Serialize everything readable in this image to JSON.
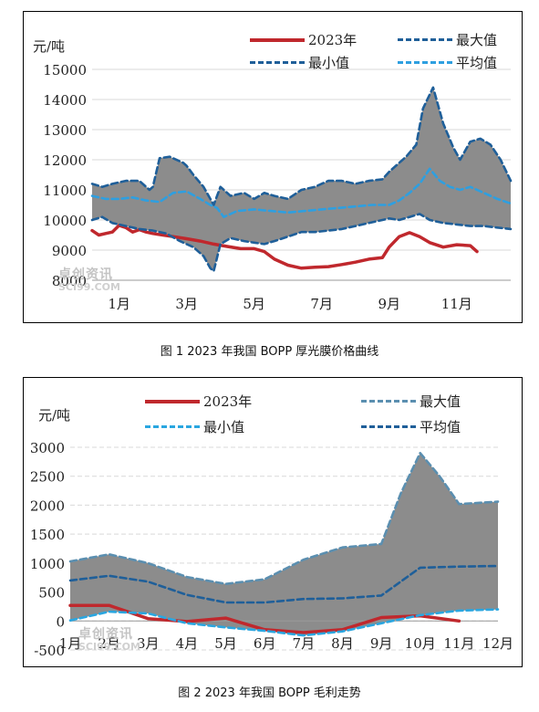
{
  "figures": [
    {
      "caption": "图 1  2023 年我国 BOPP 厚光膜价格曲线",
      "unit": "元/吨",
      "watermark_cn": "卓创资讯",
      "watermark_en": "SCI99.COM"
    },
    {
      "caption": "图 2  2023 年我国 BOPP 毛利走势",
      "unit": "元/吨",
      "watermark_cn": "卓创资讯",
      "watermark_en": "SCI99.COM"
    }
  ],
  "chart_data": [
    {
      "type": "area",
      "title": "",
      "xlabel": "",
      "ylabel": "元/吨",
      "ylim": [
        8000,
        15000
      ],
      "yticks": [
        8000,
        9000,
        10000,
        11000,
        12000,
        13000,
        14000,
        15000
      ],
      "xlim": [
        0.2,
        12.6
      ],
      "xtick_labels": [
        "1月",
        "3月",
        "5月",
        "7月",
        "9月",
        "11月"
      ],
      "xtick_positions": [
        1,
        3,
        5,
        7,
        9,
        11
      ],
      "grid": true,
      "legend": "top",
      "colors": {
        "2023年": "#c0282d",
        "最大值": "#1f5f99",
        "最小值": "#1f5f99",
        "平均值": "#2e9fe0",
        "band": "#8c8c8c"
      },
      "series": [
        {
          "name": "2023年",
          "style": "solid",
          "x": [
            0.2,
            0.4,
            0.6,
            0.8,
            1.0,
            1.2,
            1.4,
            1.6,
            1.8,
            2.0,
            2.3,
            2.6,
            3.0,
            3.4,
            3.8,
            4.2,
            4.6,
            5.0,
            5.3,
            5.6,
            6.0,
            6.4,
            6.8,
            7.2,
            7.6,
            8.0,
            8.4,
            8.8,
            9.0,
            9.3,
            9.6,
            9.9,
            10.2,
            10.6,
            11.0,
            11.4,
            11.6
          ],
          "values": [
            9650,
            9500,
            9550,
            9600,
            9820,
            9750,
            9600,
            9680,
            9600,
            9550,
            9500,
            9450,
            9380,
            9300,
            9200,
            9120,
            9050,
            9050,
            8950,
            8700,
            8500,
            8400,
            8430,
            8450,
            8520,
            8600,
            8700,
            8750,
            9100,
            9450,
            9580,
            9450,
            9250,
            9100,
            9180,
            9150,
            8950
          ]
        },
        {
          "name": "最大值",
          "style": "dashed",
          "x": [
            0.2,
            0.5,
            0.8,
            1.2,
            1.6,
            1.9,
            2.0,
            2.2,
            2.5,
            2.9,
            3.0,
            3.2,
            3.5,
            3.8,
            4.0,
            4.3,
            4.7,
            5.0,
            5.3,
            5.6,
            6.0,
            6.4,
            6.8,
            7.2,
            7.6,
            8.0,
            8.4,
            8.8,
            9.0,
            9.3,
            9.5,
            9.8,
            10.0,
            10.3,
            10.6,
            10.9,
            11.1,
            11.4,
            11.7,
            12.0,
            12.3,
            12.6
          ],
          "values": [
            11200,
            11100,
            11200,
            11300,
            11300,
            11000,
            11100,
            12050,
            12100,
            11900,
            11800,
            11500,
            11100,
            10500,
            11100,
            10800,
            10900,
            10700,
            10900,
            10800,
            10700,
            11000,
            11100,
            11300,
            11300,
            11200,
            11300,
            11350,
            11600,
            11900,
            12100,
            12500,
            13700,
            14400,
            13200,
            12400,
            12000,
            12600,
            12700,
            12500,
            12000,
            11300
          ]
        },
        {
          "name": "最小值",
          "style": "dashed",
          "x": [
            0.2,
            0.5,
            0.8,
            1.2,
            1.6,
            2.0,
            2.4,
            2.8,
            3.0,
            3.2,
            3.5,
            3.7,
            3.8,
            4.0,
            4.3,
            4.7,
            5.0,
            5.3,
            5.6,
            6.0,
            6.4,
            6.8,
            7.2,
            7.6,
            8.0,
            8.4,
            8.8,
            9.0,
            9.3,
            9.6,
            9.9,
            10.2,
            10.6,
            11.0,
            11.4,
            11.8,
            12.2,
            12.6
          ],
          "values": [
            10000,
            10100,
            9900,
            9800,
            9700,
            9650,
            9550,
            9300,
            9200,
            9100,
            8800,
            8400,
            8300,
            9200,
            9400,
            9300,
            9250,
            9200,
            9300,
            9450,
            9600,
            9600,
            9650,
            9700,
            9800,
            9900,
            10000,
            10050,
            10000,
            10100,
            10200,
            10000,
            9900,
            9850,
            9800,
            9800,
            9750,
            9700
          ]
        },
        {
          "name": "平均值",
          "style": "dashed",
          "x": [
            0.2,
            0.6,
            1.0,
            1.4,
            1.8,
            2.2,
            2.6,
            3.0,
            3.4,
            3.7,
            3.9,
            4.1,
            4.5,
            5.0,
            5.5,
            6.0,
            6.5,
            7.0,
            7.5,
            8.0,
            8.5,
            9.0,
            9.3,
            9.6,
            9.9,
            10.2,
            10.5,
            10.8,
            11.1,
            11.4,
            11.8,
            12.2,
            12.6
          ],
          "values": [
            10800,
            10700,
            10700,
            10750,
            10650,
            10600,
            10900,
            10950,
            10700,
            10500,
            10400,
            10100,
            10300,
            10350,
            10300,
            10250,
            10300,
            10350,
            10400,
            10450,
            10500,
            10500,
            10650,
            10900,
            11200,
            11700,
            11300,
            11100,
            11000,
            11100,
            10900,
            10700,
            10550
          ]
        }
      ],
      "band": {
        "upper": "最大值",
        "lower": "最小值"
      }
    },
    {
      "type": "area",
      "title": "",
      "xlabel": "",
      "ylabel": "元/吨",
      "ylim": [
        -500,
        3000
      ],
      "yticks": [
        -500,
        0,
        500,
        1000,
        1500,
        2000,
        2500,
        3000
      ],
      "xlim": [
        1,
        12
      ],
      "categories": [
        "1月",
        "2月",
        "3月",
        "4月",
        "5月",
        "6月",
        "7月",
        "8月",
        "9月",
        "10月",
        "11月",
        "12月"
      ],
      "grid": true,
      "legend": "top",
      "colors": {
        "2023年": "#c0282d",
        "最大值": "#5b8fb0",
        "最小值": "#2aa6e0",
        "平均值": "#1f5f99",
        "band": "#8c8c8c"
      },
      "series": [
        {
          "name": "2023年",
          "style": "solid",
          "x": [
            1,
            2,
            3,
            4,
            5,
            6,
            7,
            8,
            9,
            10,
            11
          ],
          "values": [
            270,
            270,
            40,
            -10,
            50,
            -150,
            -200,
            -150,
            60,
            90,
            0
          ]
        },
        {
          "name": "最大值",
          "style": "dashed",
          "x": [
            1,
            2,
            3,
            4,
            5,
            6,
            7,
            8,
            9,
            9.5,
            10,
            10.5,
            11,
            12
          ],
          "values": [
            1030,
            1150,
            1000,
            760,
            640,
            720,
            1060,
            1270,
            1330,
            2200,
            2900,
            2500,
            2020,
            2060
          ]
        },
        {
          "name": "最小值",
          "style": "dashed",
          "x": [
            1,
            2,
            3,
            4,
            5,
            6,
            7,
            8,
            9,
            10,
            11,
            12
          ],
          "values": [
            10,
            160,
            130,
            -40,
            -110,
            -170,
            -250,
            -180,
            -40,
            100,
            180,
            200
          ]
        },
        {
          "name": "平均值",
          "style": "dashed",
          "x": [
            1,
            2,
            3,
            4,
            5,
            6,
            7,
            8,
            9,
            10,
            11,
            12
          ],
          "values": [
            700,
            780,
            680,
            450,
            320,
            320,
            380,
            390,
            440,
            920,
            940,
            950
          ]
        }
      ],
      "band": {
        "upper": "最大值",
        "lower": "最小值"
      }
    }
  ]
}
